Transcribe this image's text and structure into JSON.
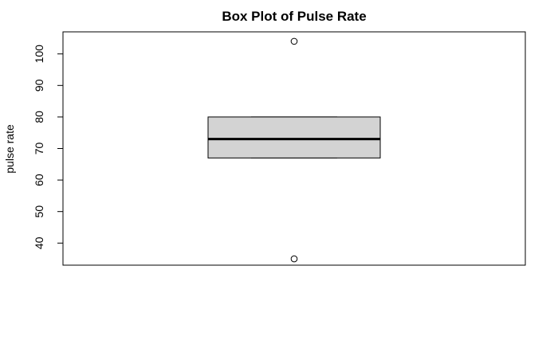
{
  "chart_data": {
    "type": "box",
    "title": "Box Plot of Pulse Rate",
    "xlabel": "",
    "ylabel": "pulse rate",
    "ylim": [
      33,
      107
    ],
    "yticks": [
      40,
      50,
      60,
      70,
      80,
      90,
      100
    ],
    "box": {
      "q1": 67,
      "median": 73,
      "q3": 80,
      "whisker_low": 67,
      "whisker_high": 80,
      "outliers": [
        104,
        35
      ]
    },
    "grid": false,
    "colors": {
      "box_fill": "#d3d3d3",
      "stroke": "#000000",
      "background": "#ffffff"
    }
  }
}
